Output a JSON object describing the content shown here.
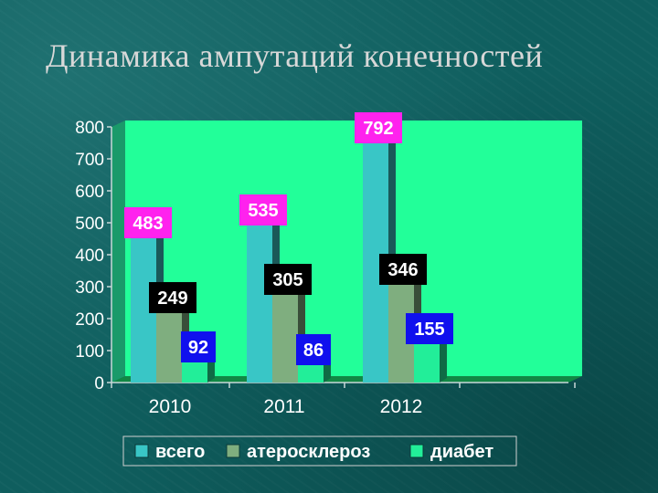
{
  "slide": {
    "title": "Динамика ампутаций конечностей"
  },
  "chart_data": {
    "type": "bar",
    "categories": [
      "2010",
      "2011",
      "2012"
    ],
    "series": [
      {
        "name": "всего",
        "values": [
          483,
          535,
          792
        ],
        "color": "#39c6c6",
        "label_bg": "#ff22ee",
        "label_fg": "#ffffff"
      },
      {
        "name": "атеросклероз",
        "values": [
          249,
          305,
          346
        ],
        "color": "#7fae7f",
        "label_bg": "#000000",
        "label_fg": "#ffffff"
      },
      {
        "name": "диабет",
        "values": [
          92,
          86,
          155
        ],
        "color": "#22ee99",
        "label_bg": "#1010ee",
        "label_fg": "#ffffff"
      }
    ],
    "yticks": [
      "0",
      "100",
      "200",
      "300",
      "400",
      "500",
      "600",
      "700",
      "800"
    ],
    "ylim": [
      0,
      800
    ],
    "grid": false,
    "legend_position": "bottom",
    "colors": {
      "back_wall": "#22ff99",
      "floor": "#118844",
      "axis_text": "#ffffff",
      "axis_line": "#c8d8d8"
    }
  }
}
